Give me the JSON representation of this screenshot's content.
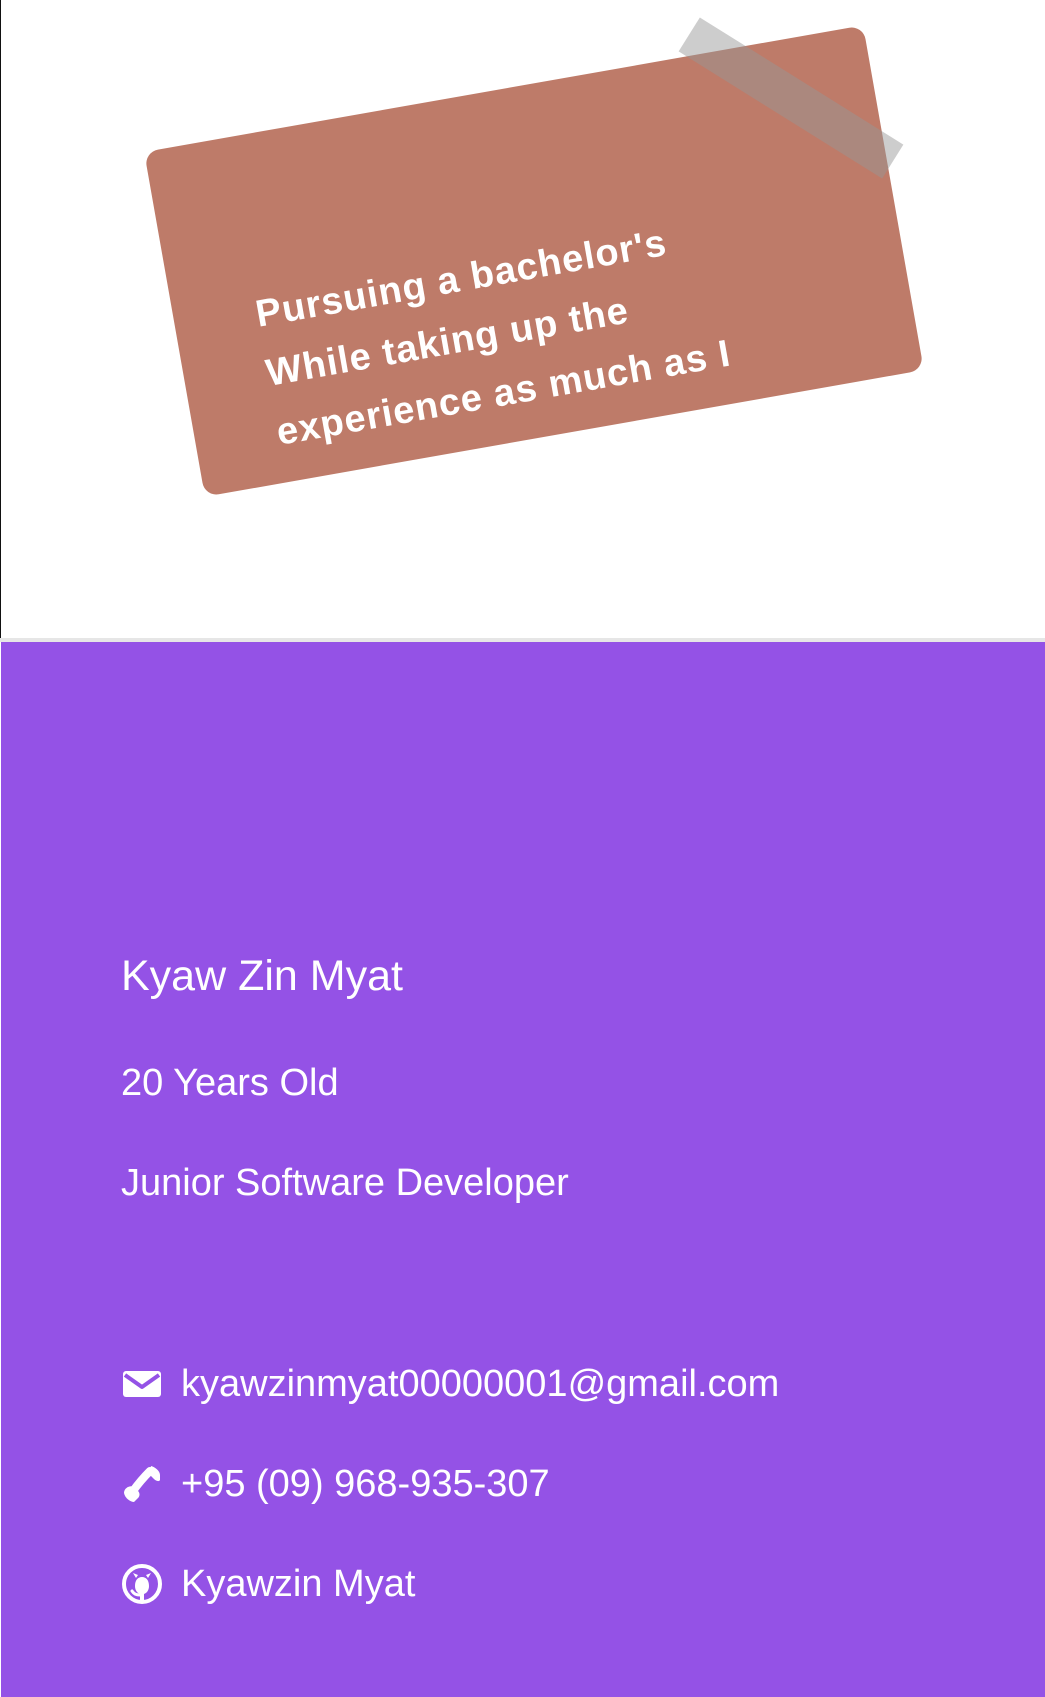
{
  "sticky_note": {
    "text": "Pursuing a bachelor's While taking up the experience as much as I can"
  },
  "profile": {
    "name": "Kyaw Zin Myat",
    "age": "20 Years Old",
    "role": "Junior Software Developer"
  },
  "contacts": {
    "email": {
      "icon": "envelope-icon",
      "value": "kyawzinmyat00000001@gmail.com"
    },
    "phone": {
      "icon": "phone-icon",
      "value": "+95 (09) 968-935-307"
    },
    "github": {
      "icon": "github-icon",
      "value": "Kyawzin Myat"
    }
  },
  "colors": {
    "sticky_note_background": "#be7b69",
    "profile_background": "#9452e6",
    "text": "#ffffff",
    "tape": "#969696"
  }
}
